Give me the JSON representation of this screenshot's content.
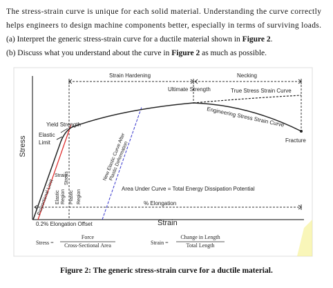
{
  "paragraph": {
    "lines": [
      "The stress-strain curve is unique for each solid material. Understanding the curve correctly",
      "helps engineers to design machine components better, especially in terms of surviving loads."
    ],
    "question_a": [
      "(a) Interpret the generic stress-strain curve for a ductile material shown in ",
      "Figure 2",
      "."
    ],
    "question_b": [
      "(b) Discuss what you understand about the curve in ",
      "Figure 2",
      " as much as possible."
    ]
  },
  "figure": {
    "labels": {
      "strain_hardening": "Strain Hardening",
      "necking": "Necking",
      "ultimate_strength": "Ultimate Strength",
      "true_curve": "True Stress Strain Curve",
      "engineering_curve": "Engineering Stress Strain Curve",
      "yield_strength": "Yield Strength",
      "elastic_limit": [
        "Elastic",
        "Limit"
      ],
      "fracture": "Fracture",
      "stress_axis": "Stress",
      "proportional_limit": "Proportional Limit",
      "strain_small": "Strain",
      "elastic_region": [
        "Elastic",
        "Region"
      ],
      "stress_small": "Stress",
      "plastic_region": [
        "Plastic",
        "Region"
      ],
      "new_elastic": [
        "New Elastic Curve After",
        "Plastic Deformation"
      ],
      "area": "Area Under Curve = Total Energy Dissipation Potential",
      "elongation": "% Elongation",
      "strain_axis": "Strain",
      "offset": "0.2% Elongation Offset"
    },
    "stress_formula": {
      "lhs": "Stress =",
      "num": "Force",
      "den": "Cross-Sectional Area"
    },
    "strain_formula": {
      "lhs": "Strain =",
      "num": "Change in Length",
      "den": "Total Length"
    },
    "caption": "Figure 2: The generic stress-strain curve for a ductile material."
  }
}
